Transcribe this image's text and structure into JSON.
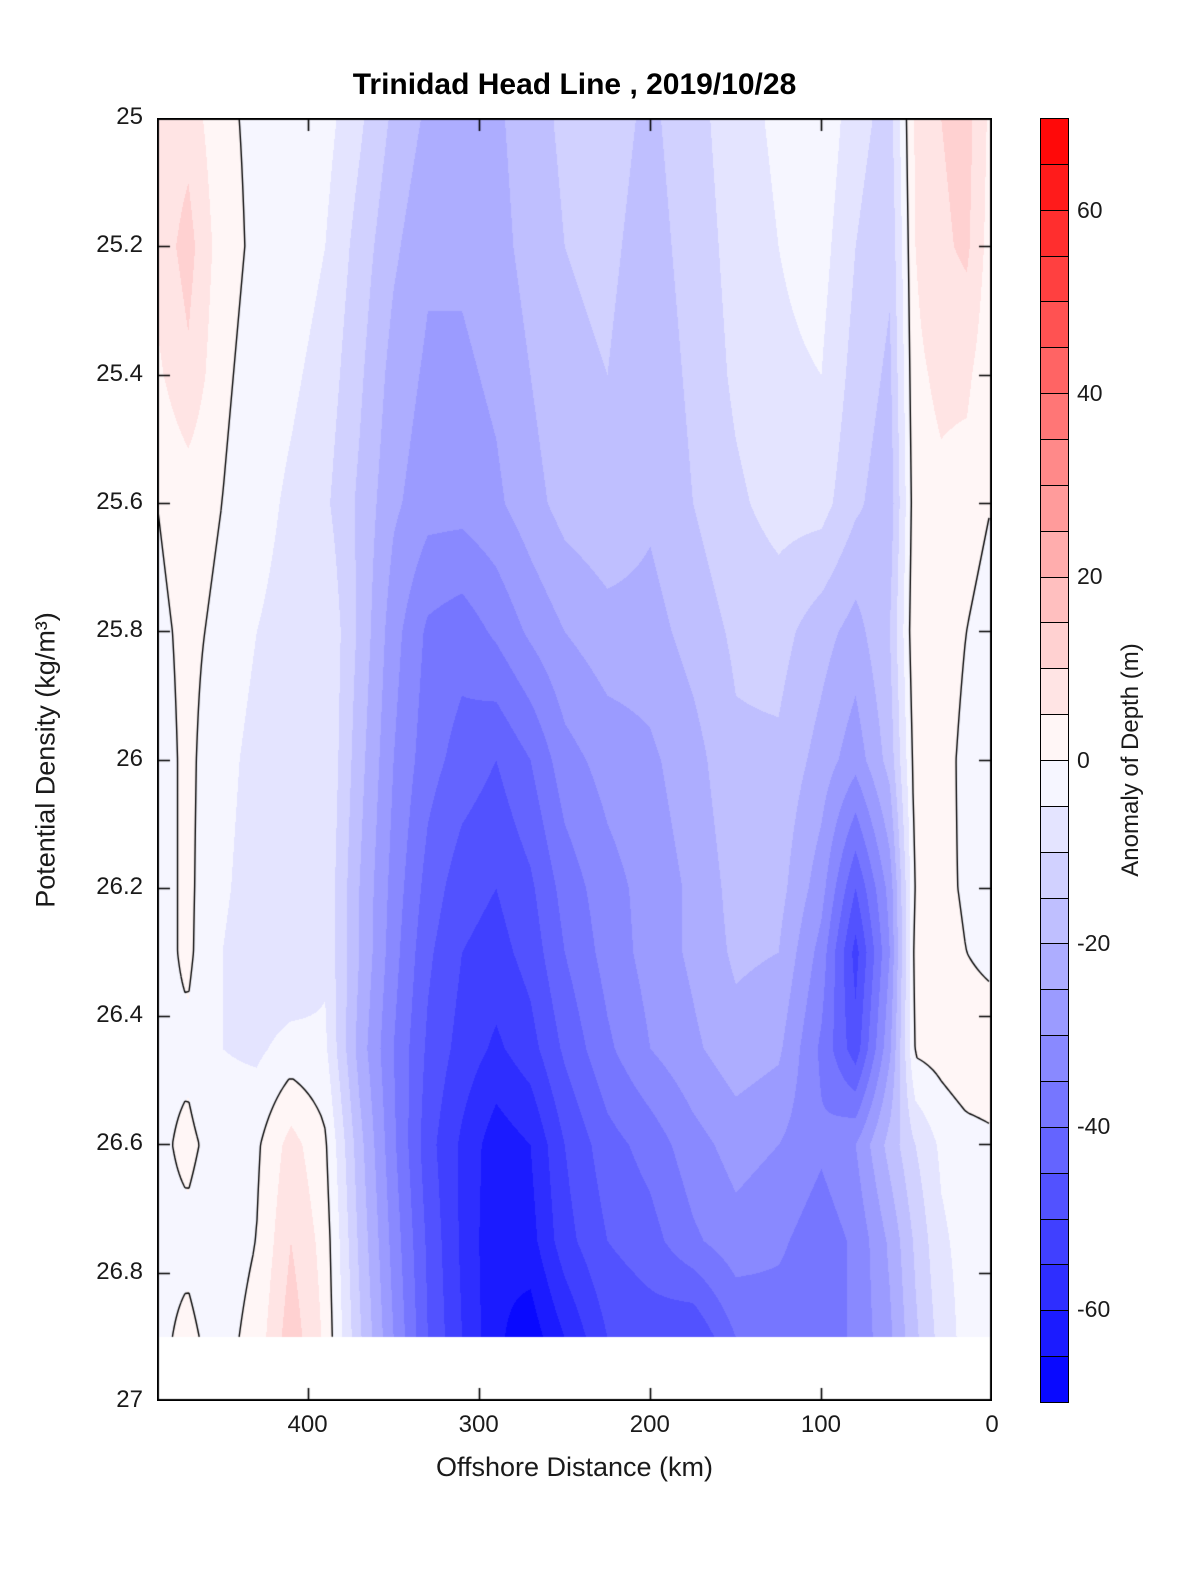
{
  "chart_data": {
    "type": "heatmap",
    "title": "Trinidad Head Line , 2019/10/28",
    "xlabel": "Offshore Distance (km)",
    "ylabel": "Potential Density (kg/m³)",
    "x_ticks": [
      400,
      300,
      200,
      100,
      0
    ],
    "y_ticks": [
      25,
      25.2,
      25.4,
      25.6,
      25.8,
      26,
      26.2,
      26.4,
      26.6,
      26.8,
      27
    ],
    "x_range": [
      488,
      0
    ],
    "y_range": [
      25,
      27
    ],
    "x_axis_reversed": true,
    "grid_on": false,
    "contour_interval_m": 5,
    "value_range": [
      -70,
      70
    ],
    "zero_contour_color": "#000000",
    "colormap": {
      "negative_max": "#0000ff",
      "zero": "#ffffff",
      "positive_max": "#ff0000"
    },
    "data_extent_sigma_max": 26.9,
    "colorbar": {
      "label": "Anomaly of Depth (m)",
      "ticks": [
        60,
        40,
        20,
        0,
        -20,
        -40,
        -60
      ],
      "segments": 28
    },
    "grid": {
      "x_km": [
        488,
        470,
        450,
        430,
        410,
        390,
        370,
        350,
        330,
        310,
        290,
        270,
        250,
        225,
        200,
        175,
        150,
        125,
        100,
        80,
        60,
        45,
        30,
        15,
        0
      ],
      "sigma": [
        25.0,
        25.2,
        25.4,
        25.6,
        25.8,
        26.0,
        26.2,
        26.3,
        26.45,
        26.6,
        26.75,
        26.9
      ],
      "anomaly_m": [
        [
          6,
          8,
          1,
          -1,
          -1,
          -3,
          -9,
          -16,
          -21,
          -22,
          -21,
          -17,
          -14,
          -13,
          -16,
          -12,
          -7,
          -4,
          -1,
          -8,
          -12,
          6,
          10,
          12,
          3
        ],
        [
          7,
          12,
          2,
          -1,
          -2,
          -5,
          -12,
          -19,
          -24,
          -24,
          -22,
          -18,
          -15,
          -14,
          -17,
          -13,
          -8,
          -5,
          -3,
          -10,
          -14,
          5,
          9,
          11,
          2
        ],
        [
          4,
          9,
          1,
          -2,
          -4,
          -7,
          -14,
          -22,
          -26,
          -26,
          -24,
          -20,
          -16,
          -15,
          -18,
          -14,
          -9,
          -6,
          -5,
          -12,
          -16,
          4,
          6,
          6,
          1
        ],
        [
          0,
          2,
          0,
          -3,
          -6,
          -9,
          -16,
          -24,
          -28,
          -28,
          -26,
          -22,
          -18,
          -16,
          -19,
          -15,
          -11,
          -8,
          -8,
          -14,
          -18,
          3,
          4,
          3,
          0
        ],
        [
          -1,
          1,
          -1,
          -5,
          -7,
          -5,
          -16,
          -28,
          -36,
          -38,
          -34,
          -29,
          -25,
          -22,
          -22,
          -18,
          -14,
          -13,
          -18,
          -22,
          -15,
          4,
          4,
          0,
          -3
        ],
        [
          -2,
          1,
          -3,
          -7,
          -9,
          -5,
          -18,
          -30,
          -38,
          -42,
          -45,
          -40,
          -32,
          -28,
          -26,
          -22,
          -16,
          -16,
          -22,
          -28,
          -18,
          2,
          3,
          -2,
          -4
        ],
        [
          -2,
          1,
          -4,
          -8,
          -10,
          -6,
          -20,
          -32,
          -42,
          -48,
          -50,
          -46,
          -38,
          -32,
          -28,
          -24,
          -18,
          -18,
          -28,
          -45,
          -28,
          1,
          2,
          -1,
          -3
        ],
        [
          -2,
          1,
          -5,
          -9,
          -10,
          -6,
          -20,
          -33,
          -44,
          -50,
          -52,
          -48,
          -40,
          -33,
          -28,
          -24,
          -19,
          -20,
          -32,
          -52,
          -30,
          2,
          3,
          0,
          -2
        ],
        [
          -1,
          -1,
          -5,
          -6,
          -3,
          -4,
          -22,
          -35,
          -46,
          -52,
          -56,
          -52,
          -44,
          -36,
          -30,
          -26,
          -22,
          -24,
          -36,
          -48,
          -26,
          1,
          2,
          4,
          4
        ],
        [
          -1,
          1,
          -2,
          -1,
          7,
          1,
          -18,
          -34,
          -48,
          -56,
          -63,
          -60,
          -50,
          -42,
          -38,
          -32,
          -28,
          -30,
          -34,
          -30,
          -18,
          -10,
          -4,
          -2,
          -1
        ],
        [
          -1,
          -1,
          -3,
          0,
          10,
          3,
          -16,
          -32,
          -46,
          -56,
          -64,
          -62,
          -52,
          -45,
          -42,
          -36,
          -32,
          -34,
          -38,
          -34,
          -24,
          -14,
          -6,
          -3,
          -2
        ],
        [
          -1,
          1,
          -2,
          2,
          13,
          4,
          -14,
          -30,
          -45,
          -55,
          -64,
          -68,
          -60,
          -50,
          -48,
          -50,
          -40,
          -38,
          -38,
          -34,
          -26,
          -16,
          -8,
          -3,
          -2
        ]
      ]
    }
  }
}
